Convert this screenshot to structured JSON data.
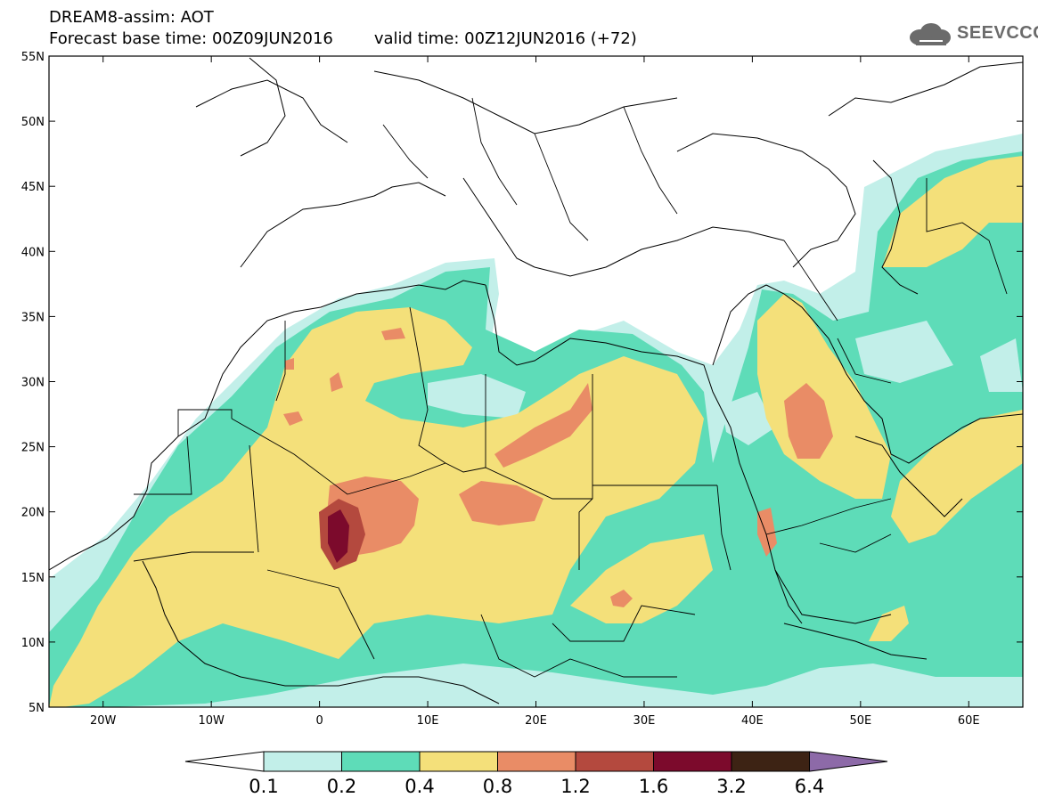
{
  "title": {
    "line1": "DREAM8-assim: AOT",
    "forecast": "Forecast base time: 00Z09JUN2016",
    "valid": "valid time: 00Z12JUN2016 (+72)"
  },
  "logo": {
    "text": "SEEVCCC",
    "icon": "cloud-icon"
  },
  "axes": {
    "lat_labels": [
      "55N",
      "50N",
      "45N",
      "40N",
      "35N",
      "30N",
      "25N",
      "20N",
      "15N",
      "10N",
      "5N"
    ],
    "lon_labels": [
      "20W",
      "10W",
      "0",
      "10E",
      "20E",
      "30E",
      "40E",
      "50E",
      "60E"
    ],
    "lat_range": [
      5,
      55
    ],
    "lon_range": [
      -25,
      65
    ]
  },
  "colorbar": {
    "labels": [
      "0.1",
      "0.2",
      "0.4",
      "0.8",
      "1.2",
      "1.6",
      "3.2",
      "6.4"
    ],
    "colors": [
      "#c2efe9",
      "#5edcb8",
      "#f4e07a",
      "#e98c66",
      "#b4493e",
      "#7c0a2c",
      "#3d2314",
      "#8d6aa8"
    ],
    "under_color": "#ffffff"
  }
}
